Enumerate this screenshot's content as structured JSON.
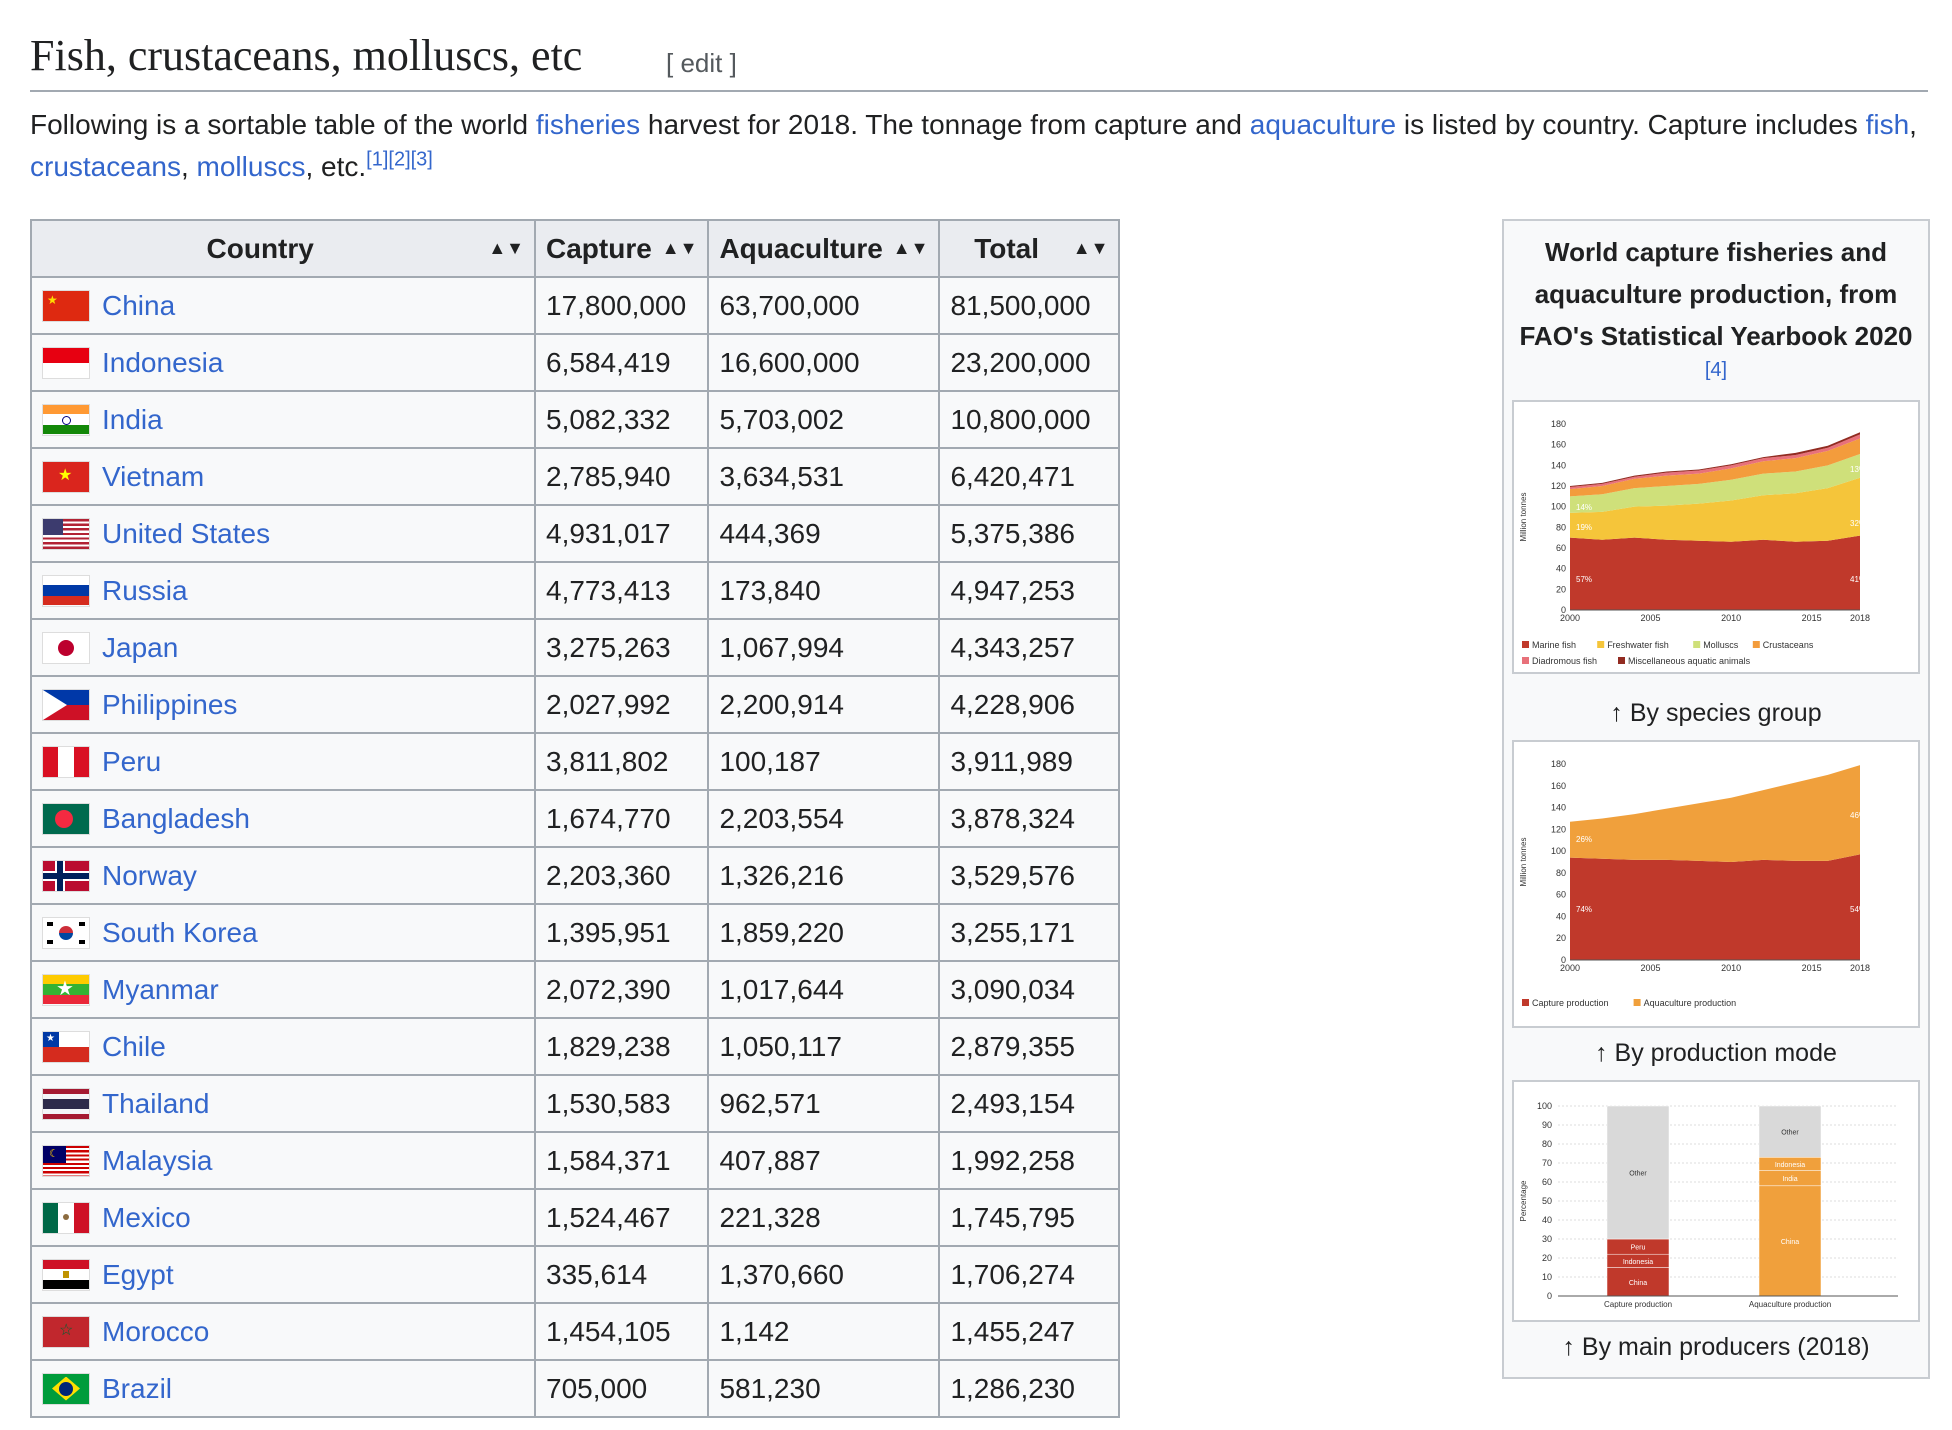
{
  "section": {
    "title": "Fish, crustaceans, molluscs, etc",
    "edit_label": "[ edit ]"
  },
  "intro": {
    "t1": "Following is a sortable table of the world ",
    "l1": "fisheries",
    "t2": " harvest for 2018. The tonnage from capture and ",
    "l2": "aquaculture",
    "t3": " is listed by country. Capture includes ",
    "l3": "fish",
    "t4": ", ",
    "l4": "crustaceans",
    "t5": ", ",
    "l5": "molluscs",
    "t6": ", etc.",
    "refs": "[1][2][3]"
  },
  "table": {
    "headers": [
      "Country",
      "Capture",
      "Aquaculture",
      "Total"
    ],
    "sort_icon": "sort-arrows-icon",
    "rows": [
      {
        "country": "China",
        "flag": "china",
        "capture": "17,800,000",
        "aquaculture": "63,700,000",
        "total": "81,500,000"
      },
      {
        "country": "Indonesia",
        "flag": "indonesia",
        "capture": "6,584,419",
        "aquaculture": "16,600,000",
        "total": "23,200,000"
      },
      {
        "country": "India",
        "flag": "india",
        "capture": "5,082,332",
        "aquaculture": "5,703,002",
        "total": "10,800,000"
      },
      {
        "country": "Vietnam",
        "flag": "vietnam",
        "capture": "2,785,940",
        "aquaculture": "3,634,531",
        "total": "6,420,471"
      },
      {
        "country": "United States",
        "flag": "usa",
        "capture": "4,931,017",
        "aquaculture": "444,369",
        "total": "5,375,386"
      },
      {
        "country": "Russia",
        "flag": "russia",
        "capture": "4,773,413",
        "aquaculture": "173,840",
        "total": "4,947,253"
      },
      {
        "country": "Japan",
        "flag": "japan",
        "capture": "3,275,263",
        "aquaculture": "1,067,994",
        "total": "4,343,257"
      },
      {
        "country": "Philippines",
        "flag": "philippines",
        "capture": "2,027,992",
        "aquaculture": "2,200,914",
        "total": "4,228,906"
      },
      {
        "country": "Peru",
        "flag": "peru",
        "capture": "3,811,802",
        "aquaculture": "100,187",
        "total": "3,911,989"
      },
      {
        "country": "Bangladesh",
        "flag": "bangladesh",
        "capture": "1,674,770",
        "aquaculture": "2,203,554",
        "total": "3,878,324"
      },
      {
        "country": "Norway",
        "flag": "norway",
        "capture": "2,203,360",
        "aquaculture": "1,326,216",
        "total": "3,529,576"
      },
      {
        "country": "South Korea",
        "flag": "southkorea",
        "capture": "1,395,951",
        "aquaculture": "1,859,220",
        "total": "3,255,171"
      },
      {
        "country": "Myanmar",
        "flag": "myanmar",
        "capture": "2,072,390",
        "aquaculture": "1,017,644",
        "total": "3,090,034"
      },
      {
        "country": "Chile",
        "flag": "chile",
        "capture": "1,829,238",
        "aquaculture": "1,050,117",
        "total": "2,879,355"
      },
      {
        "country": "Thailand",
        "flag": "thailand",
        "capture": "1,530,583",
        "aquaculture": "962,571",
        "total": "2,493,154"
      },
      {
        "country": "Malaysia",
        "flag": "malaysia",
        "capture": "1,584,371",
        "aquaculture": "407,887",
        "total": "1,992,258"
      },
      {
        "country": "Mexico",
        "flag": "mexico",
        "capture": "1,524,467",
        "aquaculture": "221,328",
        "total": "1,745,795"
      },
      {
        "country": "Egypt",
        "flag": "egypt",
        "capture": "335,614",
        "aquaculture": "1,370,660",
        "total": "1,706,274"
      },
      {
        "country": "Morocco",
        "flag": "morocco",
        "capture": "1,454,105",
        "aquaculture": "1,142",
        "total": "1,455,247"
      },
      {
        "country": "Brazil",
        "flag": "brazil",
        "capture": "705,000",
        "aquaculture": "581,230",
        "total": "1,286,230"
      }
    ]
  },
  "infobox": {
    "title": "World capture fisheries and aquaculture production, from FAO's Statistical Yearbook 2020",
    "ref": "[4]",
    "captions": [
      "↑ By species group",
      "↑ By production mode",
      "↑ By main producers (2018)"
    ]
  },
  "chart_data": [
    {
      "type": "area",
      "ylabel": "Million tonnes",
      "ylim": [
        0,
        180
      ],
      "yticks": [
        "0",
        "20",
        "40",
        "60",
        "80",
        "100",
        "120",
        "140",
        "160",
        "180"
      ],
      "xticks": [
        "2000",
        "2005",
        "2010",
        "2015",
        "2018"
      ],
      "x": [
        2000,
        2002,
        2004,
        2006,
        2008,
        2010,
        2012,
        2014,
        2016,
        2018
      ],
      "series": [
        {
          "name": "Marine fish",
          "color": "#c0392b",
          "values": [
            70,
            68,
            70,
            68,
            67,
            66,
            68,
            66,
            67,
            72
          ]
        },
        {
          "name": "Freshwater fish",
          "color": "#f5c53a",
          "values": [
            24,
            27,
            30,
            33,
            36,
            40,
            43,
            47,
            51,
            56
          ]
        },
        {
          "name": "Molluscs",
          "color": "#cfe07a",
          "values": [
            16,
            17,
            18,
            19,
            19,
            20,
            21,
            21,
            22,
            23
          ]
        },
        {
          "name": "Crustaceans",
          "color": "#f39c3c",
          "values": [
            7,
            8,
            9,
            10,
            10,
            11,
            12,
            13,
            14,
            15
          ]
        },
        {
          "name": "Diadromous fish",
          "color": "#e8717a",
          "values": [
            2,
            2,
            2,
            3,
            3,
            3,
            3,
            3,
            3,
            4
          ]
        },
        {
          "name": "Miscellaneous aquatic animals",
          "color": "#922b21",
          "values": [
            1,
            1,
            1,
            1,
            1,
            1,
            1,
            2,
            2,
            2
          ]
        }
      ],
      "annotations": [
        "57%",
        "19%",
        "14%",
        "41%",
        "32%",
        "13%"
      ]
    },
    {
      "type": "area",
      "ylabel": "Million tonnes",
      "ylim": [
        0,
        180
      ],
      "yticks": [
        "0",
        "20",
        "40",
        "60",
        "80",
        "100",
        "120",
        "140",
        "160",
        "180"
      ],
      "xticks": [
        "2000",
        "2005",
        "2010",
        "2015",
        "2018"
      ],
      "x": [
        2000,
        2002,
        2004,
        2006,
        2008,
        2010,
        2012,
        2014,
        2016,
        2018
      ],
      "series": [
        {
          "name": "Capture production",
          "color": "#c0392b",
          "values": [
            94,
            93,
            92,
            92,
            91,
            90,
            92,
            91,
            91,
            97
          ]
        },
        {
          "name": "Aquaculture production",
          "color": "#f0a03c",
          "values": [
            33,
            37,
            42,
            47,
            53,
            59,
            64,
            72,
            79,
            82
          ]
        }
      ],
      "annotations": [
        "74%",
        "26%",
        "54%",
        "46%"
      ]
    },
    {
      "type": "bar",
      "ylabel": "Percentage",
      "ylim": [
        0,
        100
      ],
      "yticks": [
        "0",
        "10",
        "20",
        "30",
        "40",
        "50",
        "60",
        "70",
        "80",
        "90",
        "100"
      ],
      "categories": [
        "Capture production",
        "Aquaculture production"
      ],
      "stacks": [
        [
          {
            "label": "China",
            "value": 15,
            "color": "#c0392b"
          },
          {
            "label": "Indonesia",
            "value": 7,
            "color": "#c0392b"
          },
          {
            "label": "Peru",
            "value": 8,
            "color": "#c0392b"
          },
          {
            "label": "Other",
            "value": 70,
            "color": "#d9d9d9"
          }
        ],
        [
          {
            "label": "China",
            "value": 58,
            "color": "#f0a03c"
          },
          {
            "label": "India",
            "value": 8,
            "color": "#f0a03c"
          },
          {
            "label": "Indonesia",
            "value": 7,
            "color": "#f0a03c"
          },
          {
            "label": "Other",
            "value": 27,
            "color": "#d9d9d9"
          }
        ]
      ]
    }
  ]
}
